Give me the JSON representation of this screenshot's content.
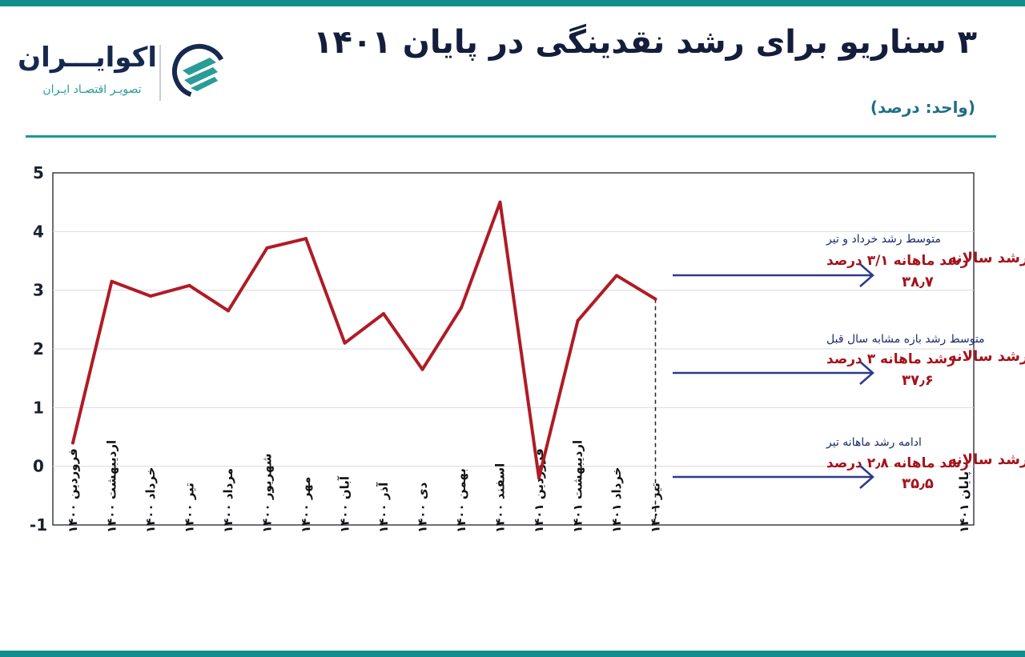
{
  "header": {
    "title": "۳ سناریو برای رشد نقدینگی در پایان ۱۴۰۱",
    "unit": "(واحد: درصد)"
  },
  "brand": {
    "name": "اکوایـــران",
    "tagline": "تصویـر اقتصـاد ایـران",
    "colors": {
      "navy": "#16294f",
      "teal": "#2a9c97"
    }
  },
  "chart_data": {
    "type": "line",
    "ylim": [
      -1,
      5
    ],
    "yticks": [
      "5",
      "4",
      "3",
      "2",
      "1",
      "0",
      "-1"
    ],
    "categories": [
      "فروردین ۱۴۰۰",
      "اردیبهشت ۱۴۰۰",
      "خرداد ۱۴۰۰",
      "تیر ۱۴۰۰",
      "مرداد ۱۴۰۰",
      "شهریور ۱۴۰۰",
      "مهر ۱۴۰۰",
      "آبان ۱۴۰۰",
      "آذر ۱۴۰۰",
      "دی ۱۴۰۰",
      "بهمن ۱۴۰۰",
      "اسفند ۱۴۰۰",
      "فروردین ۱۴۰۱",
      "اردیبهشت ۱۴۰۱",
      "خرداد ۱۴۰۱",
      "تیر ۱۴۰۱",
      "پایان ۱۴۰۱"
    ],
    "series": [
      {
        "values": [
          0.4,
          3.15,
          2.9,
          3.08,
          2.65,
          3.72,
          3.88,
          2.1,
          2.6,
          1.65,
          2.7,
          4.5,
          -0.2,
          2.48,
          3.25,
          2.85,
          null
        ]
      }
    ],
    "grid": true,
    "colors": {
      "line": "#b01b25",
      "arrow": "#2b3a8c",
      "grid": "#d8dbe0"
    },
    "scenarios": [
      {
        "heading": "متوسط رشد خرداد و تیر",
        "monthly": "رشد ماهانه ۳/۱ درصد",
        "label": "رشد سالانه",
        "value": "۳۸٫۷"
      },
      {
        "heading": "متوسط رشد بازه مشابه سال قبل",
        "monthly": "رشد ماهانه ۳ درصد",
        "label": "رشد سالانه",
        "value": "۳۷٫۶"
      },
      {
        "heading": "ادامه رشد ماهانه تیر",
        "monthly": "رشد ماهانه ۲٫۸ درصد",
        "label": "رشد سالانه",
        "value": "۳۵٫۵"
      }
    ]
  }
}
